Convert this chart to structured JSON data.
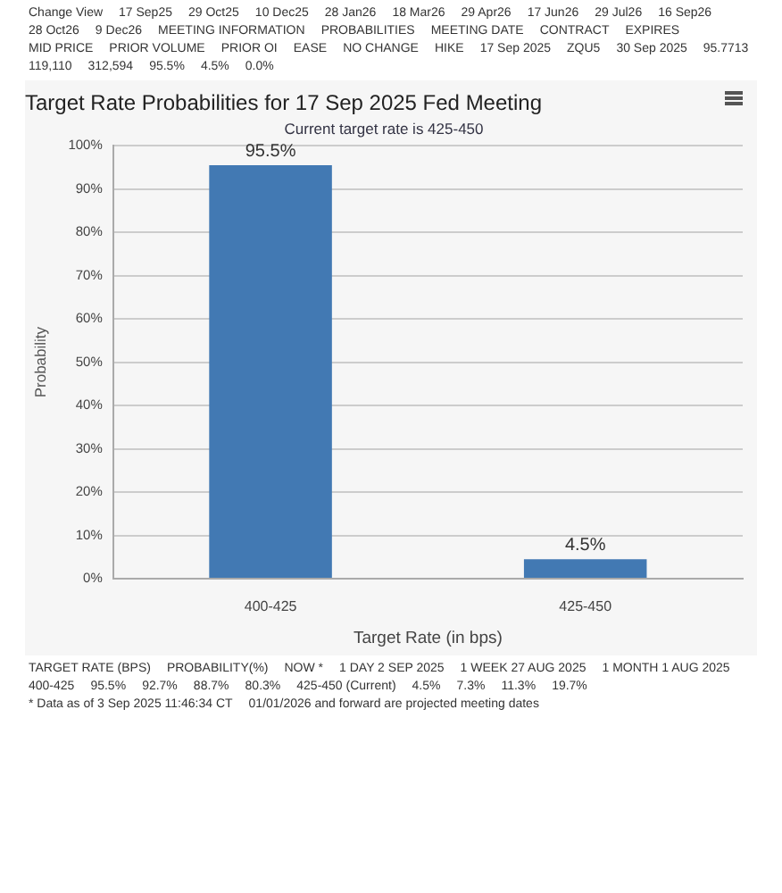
{
  "chart_data": [
    {
      "type": "other",
      "annotations": [
        "Change View",
        "17 Sep25",
        "29 Oct25",
        "10 Dec25",
        "28 Jan26",
        "18 Mar26",
        "29 Apr26",
        "17 Jun26",
        "29 Jul26",
        "16 Sep26",
        "28 Oct26",
        "9 Dec26",
        "MEETING INFORMATION",
        "PROBABILITIES",
        "MEETING DATE",
        "CONTRACT",
        "EXPIRES",
        "MID PRICE",
        "PRIOR VOLUME",
        "PRIOR OI",
        "EASE",
        "NO CHANGE",
        "HIKE",
        "17 Sep 2025",
        "ZQU5",
        "30 Sep 2025",
        "95.7713",
        "119,110",
        "312,594",
        "95.5%",
        "4.5%",
        "0.0%"
      ]
    },
    {
      "type": "bar",
      "title": "Target Rate Probabilities for 17 Sep 2025 Fed Meeting",
      "subtitle": "Current target rate is 425-450",
      "xlabel": "Target Rate (in bps)",
      "ylabel": "Probability",
      "categories": [
        "400-425",
        "425-450"
      ],
      "values": [
        95.5,
        4.5
      ],
      "color": "#4279b3",
      "value_labels": [
        "95.5%",
        "4.5%"
      ],
      "ylim": [
        0,
        100
      ],
      "yticks": [
        {
          "value": 0,
          "label": "0%"
        },
        {
          "value": 10,
          "label": "10%"
        },
        {
          "value": 20,
          "label": "20%"
        },
        {
          "value": 30,
          "label": "30%"
        },
        {
          "value": 40,
          "label": "40%"
        },
        {
          "value": 50,
          "label": "50%"
        },
        {
          "value": 60,
          "label": "60%"
        },
        {
          "value": 70,
          "label": "70%"
        },
        {
          "value": 80,
          "label": "80%"
        },
        {
          "value": 90,
          "label": "90%"
        },
        {
          "value": 100,
          "label": "100%"
        }
      ],
      "grid": "y"
    },
    {
      "type": "other",
      "annotations": [
        "TARGET RATE (BPS)",
        "PROBABILITY(%)",
        "NOW *",
        "1 DAY 2 SEP 2025",
        "1 WEEK 27 AUG 2025",
        "1 MONTH 1 AUG 2025",
        "400-425",
        "95.5%",
        "92.7%",
        "88.7%",
        "80.3%",
        "425-450 (Current)",
        "4.5%",
        "7.3%",
        "11.3%",
        "19.7%",
        "* Data as of 3 Sep 2025 11:46:34 CT",
        "01/01/2026 and forward are projected meeting dates"
      ]
    }
  ]
}
